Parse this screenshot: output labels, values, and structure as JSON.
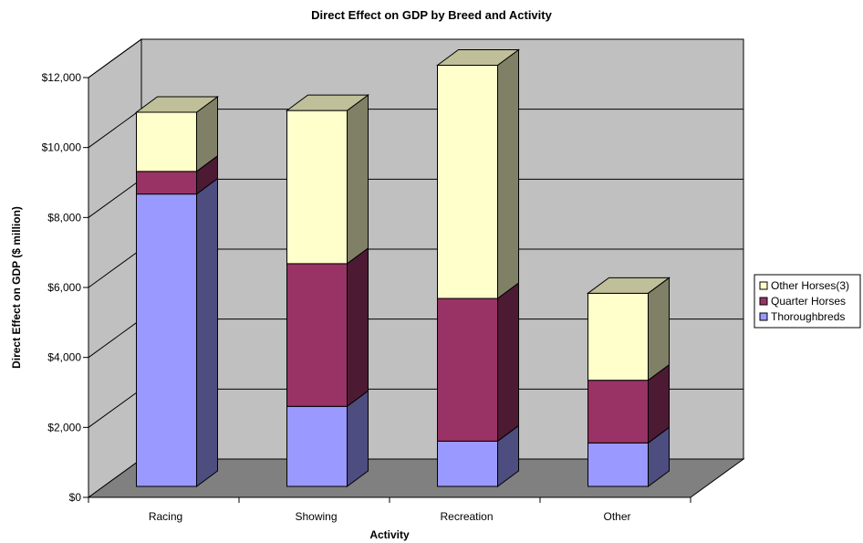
{
  "chart_data": {
    "type": "bar",
    "stacked": true,
    "three_d": true,
    "title": "Direct Effect on GDP by Breed and Activity",
    "xlabel": "Activity",
    "ylabel": "Direct Effect on GDP ($ million)",
    "categories": [
      "Racing",
      "Showing",
      "Recreation",
      "Other"
    ],
    "series": [
      {
        "name": "Thoroughbreds",
        "color": "#9999ff",
        "values": [
          8400,
          2300,
          1300,
          1250
        ]
      },
      {
        "name": "Quarter Horses",
        "color": "#993366",
        "values": [
          650,
          4100,
          4100,
          1800
        ]
      },
      {
        "name": "Other Horses(3)",
        "color": "#ffffcc",
        "values": [
          1700,
          4400,
          6700,
          2500
        ]
      }
    ],
    "ylim": [
      0,
      12000
    ],
    "yticks": [
      0,
      2000,
      4000,
      6000,
      8000,
      10000,
      12000
    ],
    "ytick_labels": [
      "$0",
      "$2,000",
      "$4,000",
      "$6,000",
      "$8,000",
      "$10,000",
      "$12,000"
    ],
    "grid": true,
    "legend_position": "right",
    "legend_order": [
      "Other Horses(3)",
      "Quarter Horses",
      "Thoroughbreds"
    ],
    "colors": {
      "back_wall": "#c0c0c0",
      "side_wall": "#c0c0c0",
      "floor": "#808080"
    }
  }
}
